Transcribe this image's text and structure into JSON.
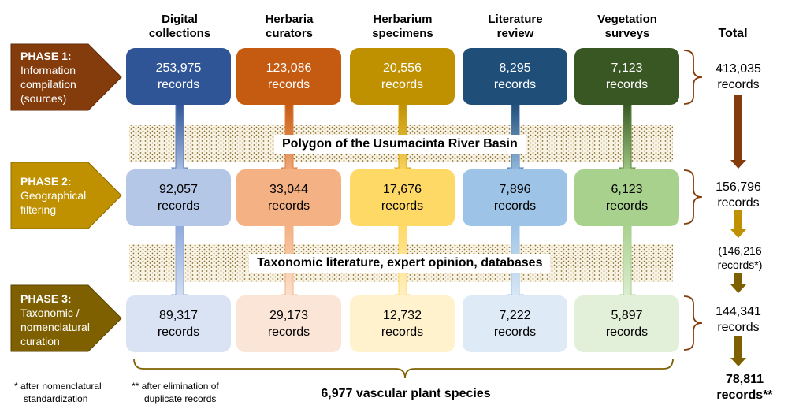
{
  "columns": [
    {
      "label": "Digital\ncollections",
      "color": "#2f5597",
      "phase1": {
        "value": "253,975",
        "unit": "records"
      },
      "phase2": {
        "value": "92,057",
        "unit": "records",
        "color": "#b4c7e7"
      },
      "phase3": {
        "value": "89,317",
        "unit": "records",
        "color": "#dae3f3"
      }
    },
    {
      "label": "Herbaria\ncurators",
      "color": "#c55a11",
      "phase1": {
        "value": "123,086",
        "unit": "records"
      },
      "phase2": {
        "value": "33,044",
        "unit": "records",
        "color": "#f4b183"
      },
      "phase3": {
        "value": "29,173",
        "unit": "records",
        "color": "#fbe5d6"
      }
    },
    {
      "label": "Herbarium\nspecimens",
      "color": "#bf9000",
      "phase1": {
        "value": "20,556",
        "unit": "records"
      },
      "phase2": {
        "value": "17,676",
        "unit": "records",
        "color": "#ffd966"
      },
      "phase3": {
        "value": "12,732",
        "unit": "records",
        "color": "#fff2cc"
      }
    },
    {
      "label": "Literature\nreview",
      "color": "#1f4e79",
      "phase1": {
        "value": "8,295",
        "unit": "records"
      },
      "phase2": {
        "value": "7,896",
        "unit": "records",
        "color": "#9dc3e6"
      },
      "phase3": {
        "value": "7,222",
        "unit": "records",
        "color": "#deebf7"
      }
    },
    {
      "label": "Vegetation\nsurveys",
      "color": "#385723",
      "phase1": {
        "value": "7,123",
        "unit": "records"
      },
      "phase2": {
        "value": "6,123",
        "unit": "records",
        "color": "#a9d18e"
      },
      "phase3": {
        "value": "5,897",
        "unit": "records",
        "color": "#e2f0d9"
      }
    }
  ],
  "phases": [
    {
      "title": "PHASE 1:",
      "desc": "Information\ncompilation\n(sources)",
      "color": "#843c0c"
    },
    {
      "title": "PHASE 2:",
      "desc": "Geographical\nfiltering",
      "color": "#bf9000"
    },
    {
      "title": "PHASE 3:",
      "desc": "Taxonomic /\nnomenclatural\ncuration",
      "color": "#7f6000"
    }
  ],
  "total_header": "Total",
  "totals": {
    "phase1": {
      "value": "413,035",
      "unit": "records"
    },
    "phase2": {
      "value": "156,796",
      "unit": "records"
    },
    "intermediate": {
      "value": "(146,216",
      "unit": "records*)"
    },
    "phase3": {
      "value": "144,341",
      "unit": "records"
    }
  },
  "bands": {
    "geographic": "Polygon of the Usumacinta River Basin",
    "taxonomic": "Taxonomic literature, expert opinion, databases"
  },
  "notes": {
    "note1_line1": "* after nomenclatural",
    "note1_line2": "standardization",
    "note2_line1": "** after elimination of",
    "note2_line2": "duplicate records"
  },
  "species_label": "6,977 vascular plant species",
  "final_total": {
    "value": "78,811",
    "unit": "records**"
  },
  "arrow_colors": {
    "total_p1": "#843c0c",
    "total_p2": "#bf9000",
    "total_p3": "#7f6000",
    "total_final": "#7f6000"
  }
}
